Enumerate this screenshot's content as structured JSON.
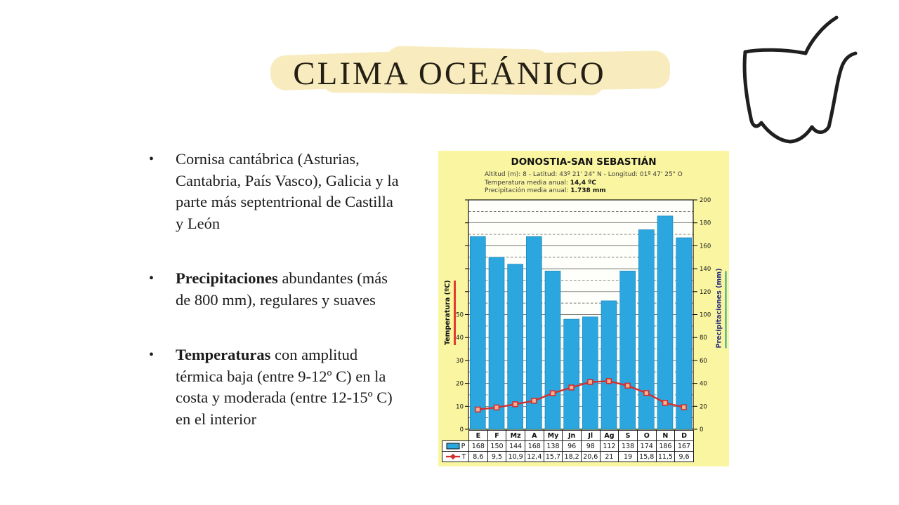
{
  "slide": {
    "title": "CLIMA OCEÁNICO",
    "bullets": [
      {
        "lead": "",
        "rest": "Cornisa cantábrica (Asturias, Cantabria, País Vasco), Galicia y la parte más septentrional de Castilla y León"
      },
      {
        "lead": "Precipitaciones",
        "rest": " abundantes (más de 800 mm), regulares y suaves"
      },
      {
        "lead": "Temperaturas",
        "rest": " con amplitud térmica baja  (entre 9-12º C) en la costa y moderada (entre 12-15º C) en el interior"
      }
    ],
    "bullet_glyph": "•",
    "highlight_color": "#F8ECBE",
    "icons": {
      "top_right": "hand-drawn-book-icon"
    }
  },
  "chart_card": {
    "station": "DONOSTIA-SAN SEBASTIÁN",
    "location_line": "Altitud (m): 8 - Latitud: 43º 21' 24\" N - Longitud: 01º 47' 25\" O",
    "temp_mean_label": "Temperatura media anual: ",
    "temp_mean_value": "14,4 ºC",
    "precip_mean_label": "Precipitación media anual: ",
    "precip_mean_value": "1.738 mm",
    "background_color": "#F9F5A0"
  },
  "chart_data": {
    "type": "bar",
    "subtype": "climograph (bar precipitation + line temperature)",
    "categories": [
      "E",
      "F",
      "Mz",
      "A",
      "My",
      "Jn",
      "Jl",
      "Ag",
      "S",
      "O",
      "N",
      "D"
    ],
    "series": [
      {
        "name": "P",
        "type": "bar",
        "values": [
          168,
          150,
          144,
          168,
          138,
          96,
          98,
          112,
          138,
          174,
          186,
          167
        ],
        "display": [
          "168",
          "150",
          "144",
          "168",
          "138",
          "96",
          "98",
          "112",
          "138",
          "174",
          "186",
          "167"
        ],
        "color": "#2BA6DF"
      },
      {
        "name": "T",
        "type": "line",
        "values": [
          8.6,
          9.5,
          10.9,
          12.4,
          15.7,
          18.2,
          20.6,
          21,
          19,
          15.8,
          11.5,
          9.6
        ],
        "display": [
          "8,6",
          "9,5",
          "10,9",
          "12,4",
          "15,7",
          "18,2",
          "20,6",
          "21",
          "19",
          "15,8",
          "11,5",
          "9,6"
        ],
        "color": "#D42F2F",
        "marker_fill": "#F5B191"
      }
    ],
    "left_axis": {
      "label": "Temperatura (ºC)",
      "min": 0,
      "max": 100,
      "tick_step": 10,
      "labeled_max": 50
    },
    "right_axis": {
      "label": "Precipitaciones (mm)",
      "min": 0,
      "max": 200,
      "tick_step": 20
    },
    "grid": "horizontal, solid every 20 mm, dashed every odd 10 mm",
    "legend_position": "table-left",
    "title": "DONOSTIA-SAN SEBASTIÁN"
  }
}
